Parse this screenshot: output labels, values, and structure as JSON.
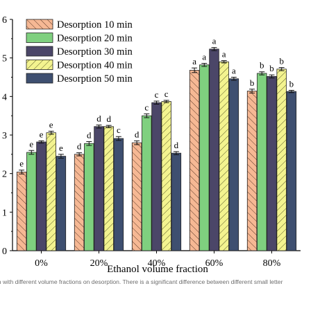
{
  "chart_data": {
    "type": "bar",
    "xlabel": "Ethanol volume fraction",
    "ylabel": "",
    "categories": [
      "0%",
      "20%",
      "40%",
      "60%",
      "80%"
    ],
    "ylim": [
      0,
      6
    ],
    "yticks": [
      "0",
      "1",
      "2",
      "3",
      "4",
      "5",
      "6"
    ],
    "legend_position": "top-left",
    "series": [
      {
        "name": "Desorption 10 min",
        "values": [
          2.04,
          2.5,
          2.8,
          4.68,
          4.14
        ],
        "errors": [
          0.05,
          0.04,
          0.05,
          0.06,
          0.05
        ],
        "letters": [
          "e",
          "d",
          "d",
          "a",
          "b"
        ],
        "color": "#f6b894",
        "pattern": "hatch-back"
      },
      {
        "name": "Desorption 20 min",
        "values": [
          2.55,
          2.78,
          3.5,
          4.82,
          4.6
        ],
        "errors": [
          0.05,
          0.05,
          0.05,
          0.04,
          0.04
        ],
        "letters": [
          "e",
          "d",
          "c",
          "a",
          "b"
        ],
        "color": "#7fd07f",
        "pattern": "solid"
      },
      {
        "name": "Desorption 30 min",
        "values": [
          2.82,
          3.22,
          3.84,
          5.23,
          4.52
        ],
        "errors": [
          0.03,
          0.04,
          0.04,
          0.04,
          0.04
        ],
        "letters": [
          "e",
          "d",
          "c",
          "a",
          "b"
        ],
        "color": "#4b4668",
        "pattern": "solid"
      },
      {
        "name": "Desorption 40 min",
        "values": [
          3.06,
          3.22,
          3.87,
          4.9,
          4.71
        ],
        "errors": [
          0.04,
          0.03,
          0.03,
          0.03,
          0.04
        ],
        "letters": [
          "e",
          "d",
          "c",
          "a",
          "b"
        ],
        "color": "#f3f38f",
        "pattern": "hatch-fwd"
      },
      {
        "name": "Desorption 50 min",
        "values": [
          2.45,
          2.91,
          2.53,
          4.46,
          4.13
        ],
        "errors": [
          0.05,
          0.05,
          0.04,
          0.04,
          0.03
        ],
        "letters": [
          "e",
          "c",
          "d",
          "a",
          "b"
        ],
        "color": "#3e4f70",
        "pattern": "solid"
      }
    ]
  },
  "caption": "on with different volume fractions on desorption. There is a significant difference between different small letter"
}
